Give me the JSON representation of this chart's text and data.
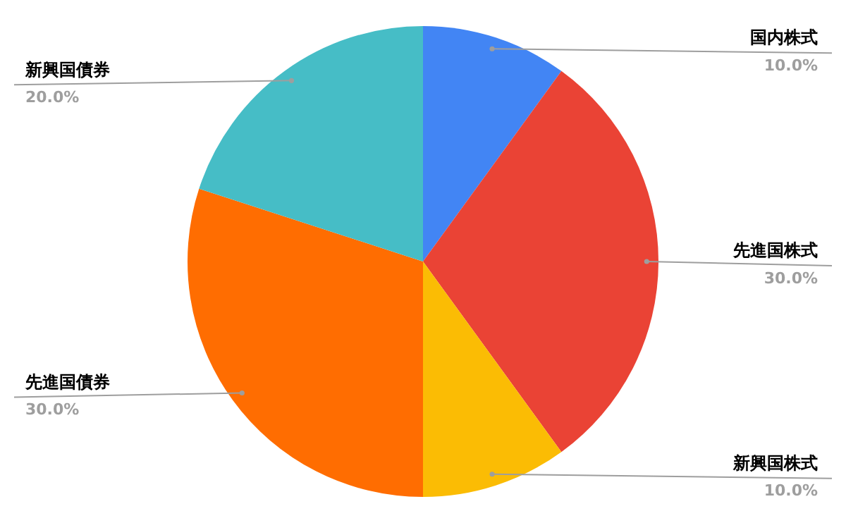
{
  "chart_data": {
    "type": "pie",
    "categories": [
      "国内株式",
      "先進国株式",
      "新興国株式",
      "先進国債券",
      "新興国債券"
    ],
    "values": [
      10,
      30,
      10,
      30,
      20
    ],
    "colors": [
      "#4285f4",
      "#ea4335",
      "#fbbc04",
      "#ff6d01",
      "#46bdc6"
    ],
    "value_labels": [
      "10.0%",
      "30.0%",
      "10.0%",
      "30.0%",
      "20.0%"
    ],
    "legend": false
  }
}
